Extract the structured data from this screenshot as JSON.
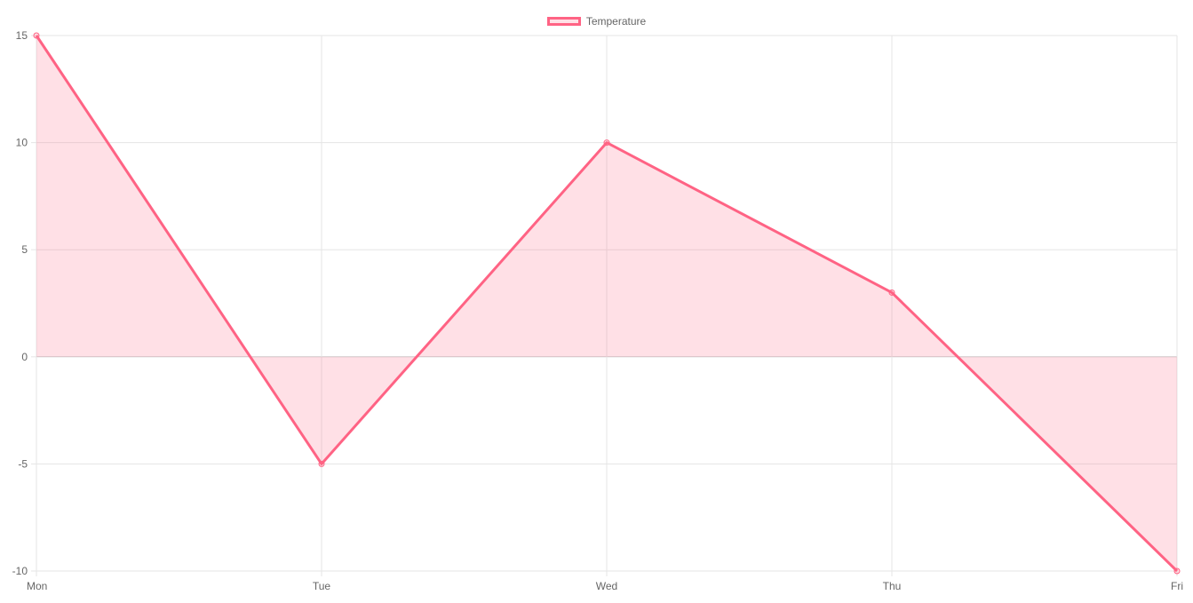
{
  "chart_data": {
    "type": "area",
    "categories": [
      "Mon",
      "Tue",
      "Wed",
      "Thu",
      "Fri"
    ],
    "series": [
      {
        "name": "Temperature",
        "values": [
          15,
          -5,
          10,
          3,
          -10
        ]
      }
    ],
    "ylim": [
      -10,
      15
    ],
    "yticks": [
      15,
      10,
      5,
      0,
      -5,
      -10
    ],
    "grid": true,
    "legend_position": "top-center",
    "colors": {
      "line": "#ff6384",
      "fill": "rgba(255,99,132,0.2)",
      "grid": "#e5e5e5",
      "zero_line": "#cccccc",
      "tick_text": "#666666"
    }
  }
}
